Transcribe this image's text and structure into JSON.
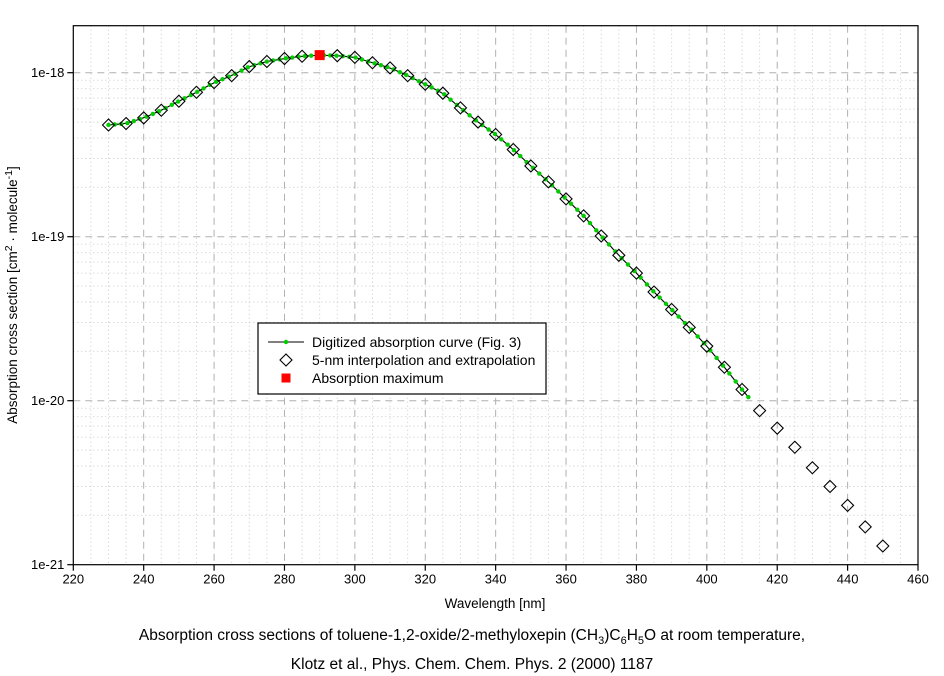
{
  "chart_data": {
    "type": "scatter",
    "title": "",
    "xlabel": "Wavelength [nm]",
    "ylabel": "Absorption cross section [cm^2 · molecule^-1]",
    "ylabel_parts": [
      {
        "t": "Absorption cross section [cm"
      },
      {
        "t": "2",
        "sup": true
      },
      {
        "t": " · molecule"
      },
      {
        "t": "-1",
        "sup": true
      },
      {
        "t": "]"
      }
    ],
    "xlim": [
      220,
      460
    ],
    "x_ticks": [
      220,
      240,
      260,
      280,
      300,
      320,
      340,
      360,
      380,
      400,
      420,
      440,
      460
    ],
    "y_scale": "log",
    "ylim": [
      1e-21,
      2e-18
    ],
    "y_ticks": [
      {
        "label": "1e-18",
        "value": 1e-18
      },
      {
        "label": "1e-19",
        "value": 1e-19
      },
      {
        "label": "1e-20",
        "value": 1e-20
      },
      {
        "label": "1e-21",
        "value": 1e-21
      }
    ],
    "grid": {
      "major": "dashed-gray",
      "minor": "dotted-light-gray",
      "x_minor_step_nm": 5
    },
    "series": [
      {
        "name": "Digitized absorption curve (Fig. 3)",
        "type": "line-with-dots",
        "color": "#00CC00",
        "line_color": "#000000",
        "x_start": 230,
        "x_end": 412.5,
        "dot_step_nm": 1.8
      },
      {
        "name": "5-nm interpolation and extrapolation",
        "type": "scatter",
        "marker": "open-diamond",
        "x": [
          230,
          235,
          240,
          245,
          250,
          255,
          260,
          265,
          270,
          275,
          280,
          285,
          290,
          295,
          300,
          305,
          310,
          315,
          320,
          325,
          330,
          335,
          340,
          345,
          350,
          355,
          360,
          365,
          370,
          375,
          380,
          385,
          390,
          395,
          400,
          405,
          410,
          415,
          420,
          425,
          430,
          435,
          440,
          445,
          450
        ],
        "y": [
          4.8e-19,
          4.9e-19,
          5.3e-19,
          5.9e-19,
          6.7e-19,
          7.6e-19,
          8.7e-19,
          9.6e-19,
          1.09e-18,
          1.17e-18,
          1.22e-18,
          1.26e-18,
          1.28e-18,
          1.27e-18,
          1.24e-18,
          1.15e-18,
          1.07e-18,
          9.6e-19,
          8.5e-19,
          7.5e-19,
          6.1e-19,
          5e-19,
          4.2e-19,
          3.4e-19,
          2.7e-19,
          2.16e-19,
          1.7e-19,
          1.34e-19,
          1.01e-19,
          7.7e-20,
          6e-20,
          4.6e-20,
          3.6e-20,
          2.8e-20,
          2.15e-20,
          1.6e-20,
          1.17e-20,
          8.7e-21,
          6.8e-21,
          5.2e-21,
          3.9e-21,
          3e-21,
          2.3e-21,
          1.7e-21,
          1.3e-21
        ]
      },
      {
        "name": "Absorption maximum",
        "type": "point",
        "marker": "red-square",
        "color": "#FF0000",
        "x": 290,
        "y": 1.28e-18
      }
    ],
    "legend": {
      "position": "inside-center-left",
      "items": [
        {
          "marker": "line-dot",
          "label": "Digitized absorption curve (Fig. 3)"
        },
        {
          "marker": "open-diamond",
          "label": "5-nm interpolation and extrapolation"
        },
        {
          "marker": "red-square",
          "label": "Absorption maximum"
        }
      ]
    }
  },
  "caption": {
    "line1_parts": [
      {
        "t": "Absorption cross sections of toluene-1,2-oxide/2-methyloxepin (CH"
      },
      {
        "t": "3",
        "sub": true
      },
      {
        "t": ")C"
      },
      {
        "t": "6",
        "sub": true
      },
      {
        "t": "H"
      },
      {
        "t": "5",
        "sub": true
      },
      {
        "t": "O at room temperature,"
      }
    ],
    "line2_parts": [
      {
        "t": "Klotz et al., Phys. Chem. Chem. Phys. 2 (2000) 1187"
      }
    ]
  },
  "colors": {
    "background": "#FFFFFF",
    "axis": "#000000",
    "grid_major": "#B0B0B0",
    "grid_minor": "#C9C9C9",
    "curve_dot": "#00CC00",
    "max_marker": "#FF0000"
  }
}
